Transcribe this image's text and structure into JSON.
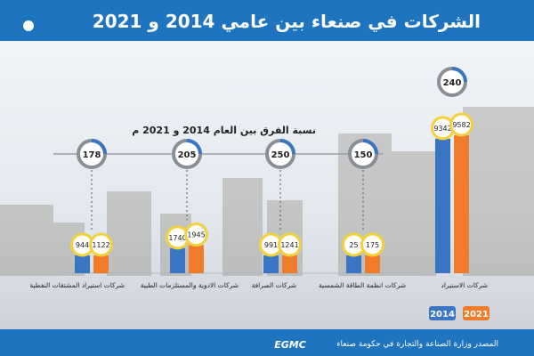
{
  "header": {
    "title": "الشركات في صنعاء بين عامي 2014 و 2021"
  },
  "annotation": {
    "diff_title": "نسبة الفرق بين العام 2014 و 2021 م"
  },
  "legend": {
    "y2014": "2014",
    "y2021": "2021"
  },
  "colors": {
    "header_bg": "#1f74c0",
    "s2014": "#3a75c4",
    "s2021": "#f07b2a",
    "badge": "#f3d13c",
    "ring": "#8a8f96",
    "footer_bg": "#1f74c0"
  },
  "footer": {
    "source": "المصدر وزارة الصناعة والتجارة في حكومة صنعاء",
    "logo": "EGMC"
  },
  "chart_data": {
    "type": "bar",
    "title": "الشركات في صنعاء بين عامي 2014 و 2021",
    "categories": [
      "شركات استيراد المشتقات النفطية",
      "شركات الادوية والمستلزمات الطبية",
      "شركات الصرافة",
      "شركات انظمة الطاقة الشمسية",
      "شركات الاستيراد"
    ],
    "series": [
      {
        "name": "2014",
        "values": [
          944,
          1740,
          991,
          25,
          9342
        ]
      },
      {
        "name": "2021",
        "values": [
          1122,
          1945,
          1241,
          175,
          9582
        ]
      }
    ],
    "difference": [
      178,
      205,
      250,
      150,
      240
    ]
  }
}
